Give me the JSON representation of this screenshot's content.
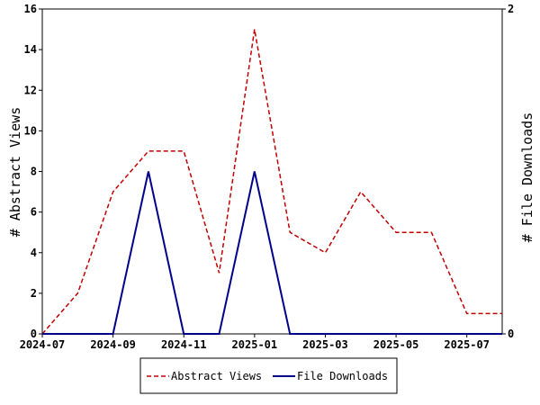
{
  "chart_data": {
    "type": "line",
    "x": [
      "2024-07",
      "2024-08",
      "2024-09",
      "2024-10",
      "2024-11",
      "2024-12",
      "2025-01",
      "2025-02",
      "2025-03",
      "2025-04",
      "2025-05",
      "2025-06",
      "2025-07",
      "2025-08"
    ],
    "x_tick_labels": [
      "2024-07",
      "2024-09",
      "2024-11",
      "2025-01",
      "2025-03",
      "2025-05",
      "2025-07"
    ],
    "series": [
      {
        "name": "Abstract Views",
        "axis": "left",
        "color": "#c00000",
        "style": "dashed",
        "values": [
          0,
          2,
          7,
          9,
          9,
          3,
          15,
          5,
          4,
          7,
          5,
          5,
          1,
          1
        ]
      },
      {
        "name": "File Downloads",
        "axis": "right",
        "color": "#00008b",
        "style": "solid",
        "values": [
          0,
          0,
          0,
          1,
          0,
          0,
          1,
          0,
          0,
          0,
          0,
          0,
          0,
          0
        ]
      }
    ],
    "ylabel": "# Abstract Views",
    "ylabel_right": "# File Downloads",
    "ylim": [
      0,
      16
    ],
    "y_ticks": [
      0,
      2,
      4,
      6,
      8,
      10,
      12,
      14,
      16
    ],
    "ylim_right": [
      0,
      2
    ],
    "y_ticks_right": [
      0,
      2
    ],
    "grid": false,
    "legend": "bottom"
  }
}
